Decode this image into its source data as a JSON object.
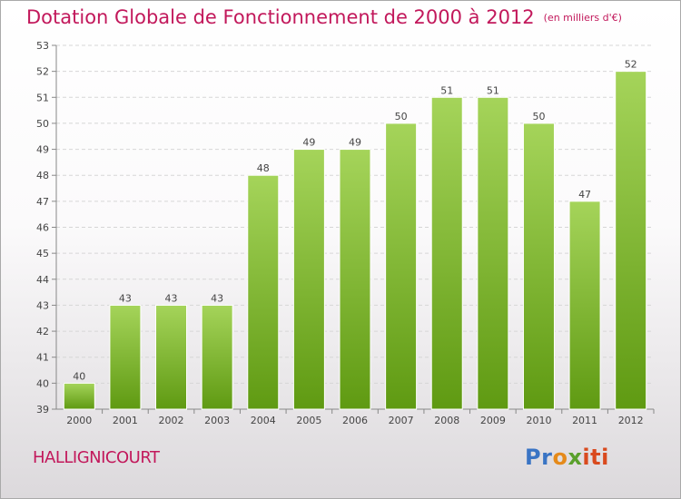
{
  "header": {
    "title": "Dotation Globale de Fonctionnement de 2000 à 2012",
    "unit": "(en milliers d'€)"
  },
  "footer": {
    "commune": "HALLIGNICOURT",
    "logo_parts": [
      "Pr",
      "o",
      "x",
      "iti"
    ]
  },
  "colors": {
    "accent": "#c2185b",
    "bar_light": "#a5d45a",
    "bar_dark": "#5f9a12"
  },
  "chart_data": {
    "type": "bar",
    "categories": [
      "2000",
      "2001",
      "2002",
      "2003",
      "2004",
      "2005",
      "2006",
      "2007",
      "2008",
      "2009",
      "2010",
      "2011",
      "2012"
    ],
    "values": [
      40,
      43,
      43,
      43,
      48,
      49,
      49,
      50,
      51,
      51,
      50,
      47,
      52
    ],
    "title": "Dotation Globale de Fonctionnement de 2000 à 2012",
    "subtitle": "(en milliers d'€)",
    "ylim": [
      39,
      53
    ],
    "yticks": [
      39,
      40,
      41,
      42,
      43,
      44,
      45,
      46,
      47,
      48,
      49,
      50,
      51,
      52,
      53
    ],
    "grid": true,
    "data_labels": true,
    "legend": "none"
  }
}
